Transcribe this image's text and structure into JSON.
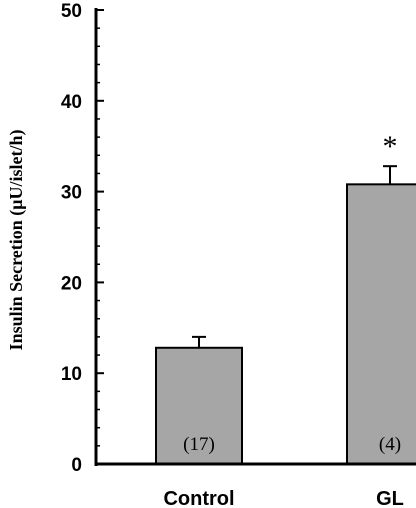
{
  "chart_data": {
    "type": "bar",
    "ylabel": "Insulin Secretion (μU/islet/h)",
    "ylim": [
      0,
      50
    ],
    "yticks": [
      "0",
      "10",
      "20",
      "30",
      "40",
      "50"
    ],
    "categories": [
      "Control",
      "GL"
    ],
    "values": [
      12.8,
      30.8
    ],
    "errors": [
      1.2,
      2.0
    ],
    "n_labels": [
      "(17)",
      "(4)"
    ],
    "significance": [
      "",
      "*"
    ],
    "bar_color": "#a6a6a6"
  }
}
